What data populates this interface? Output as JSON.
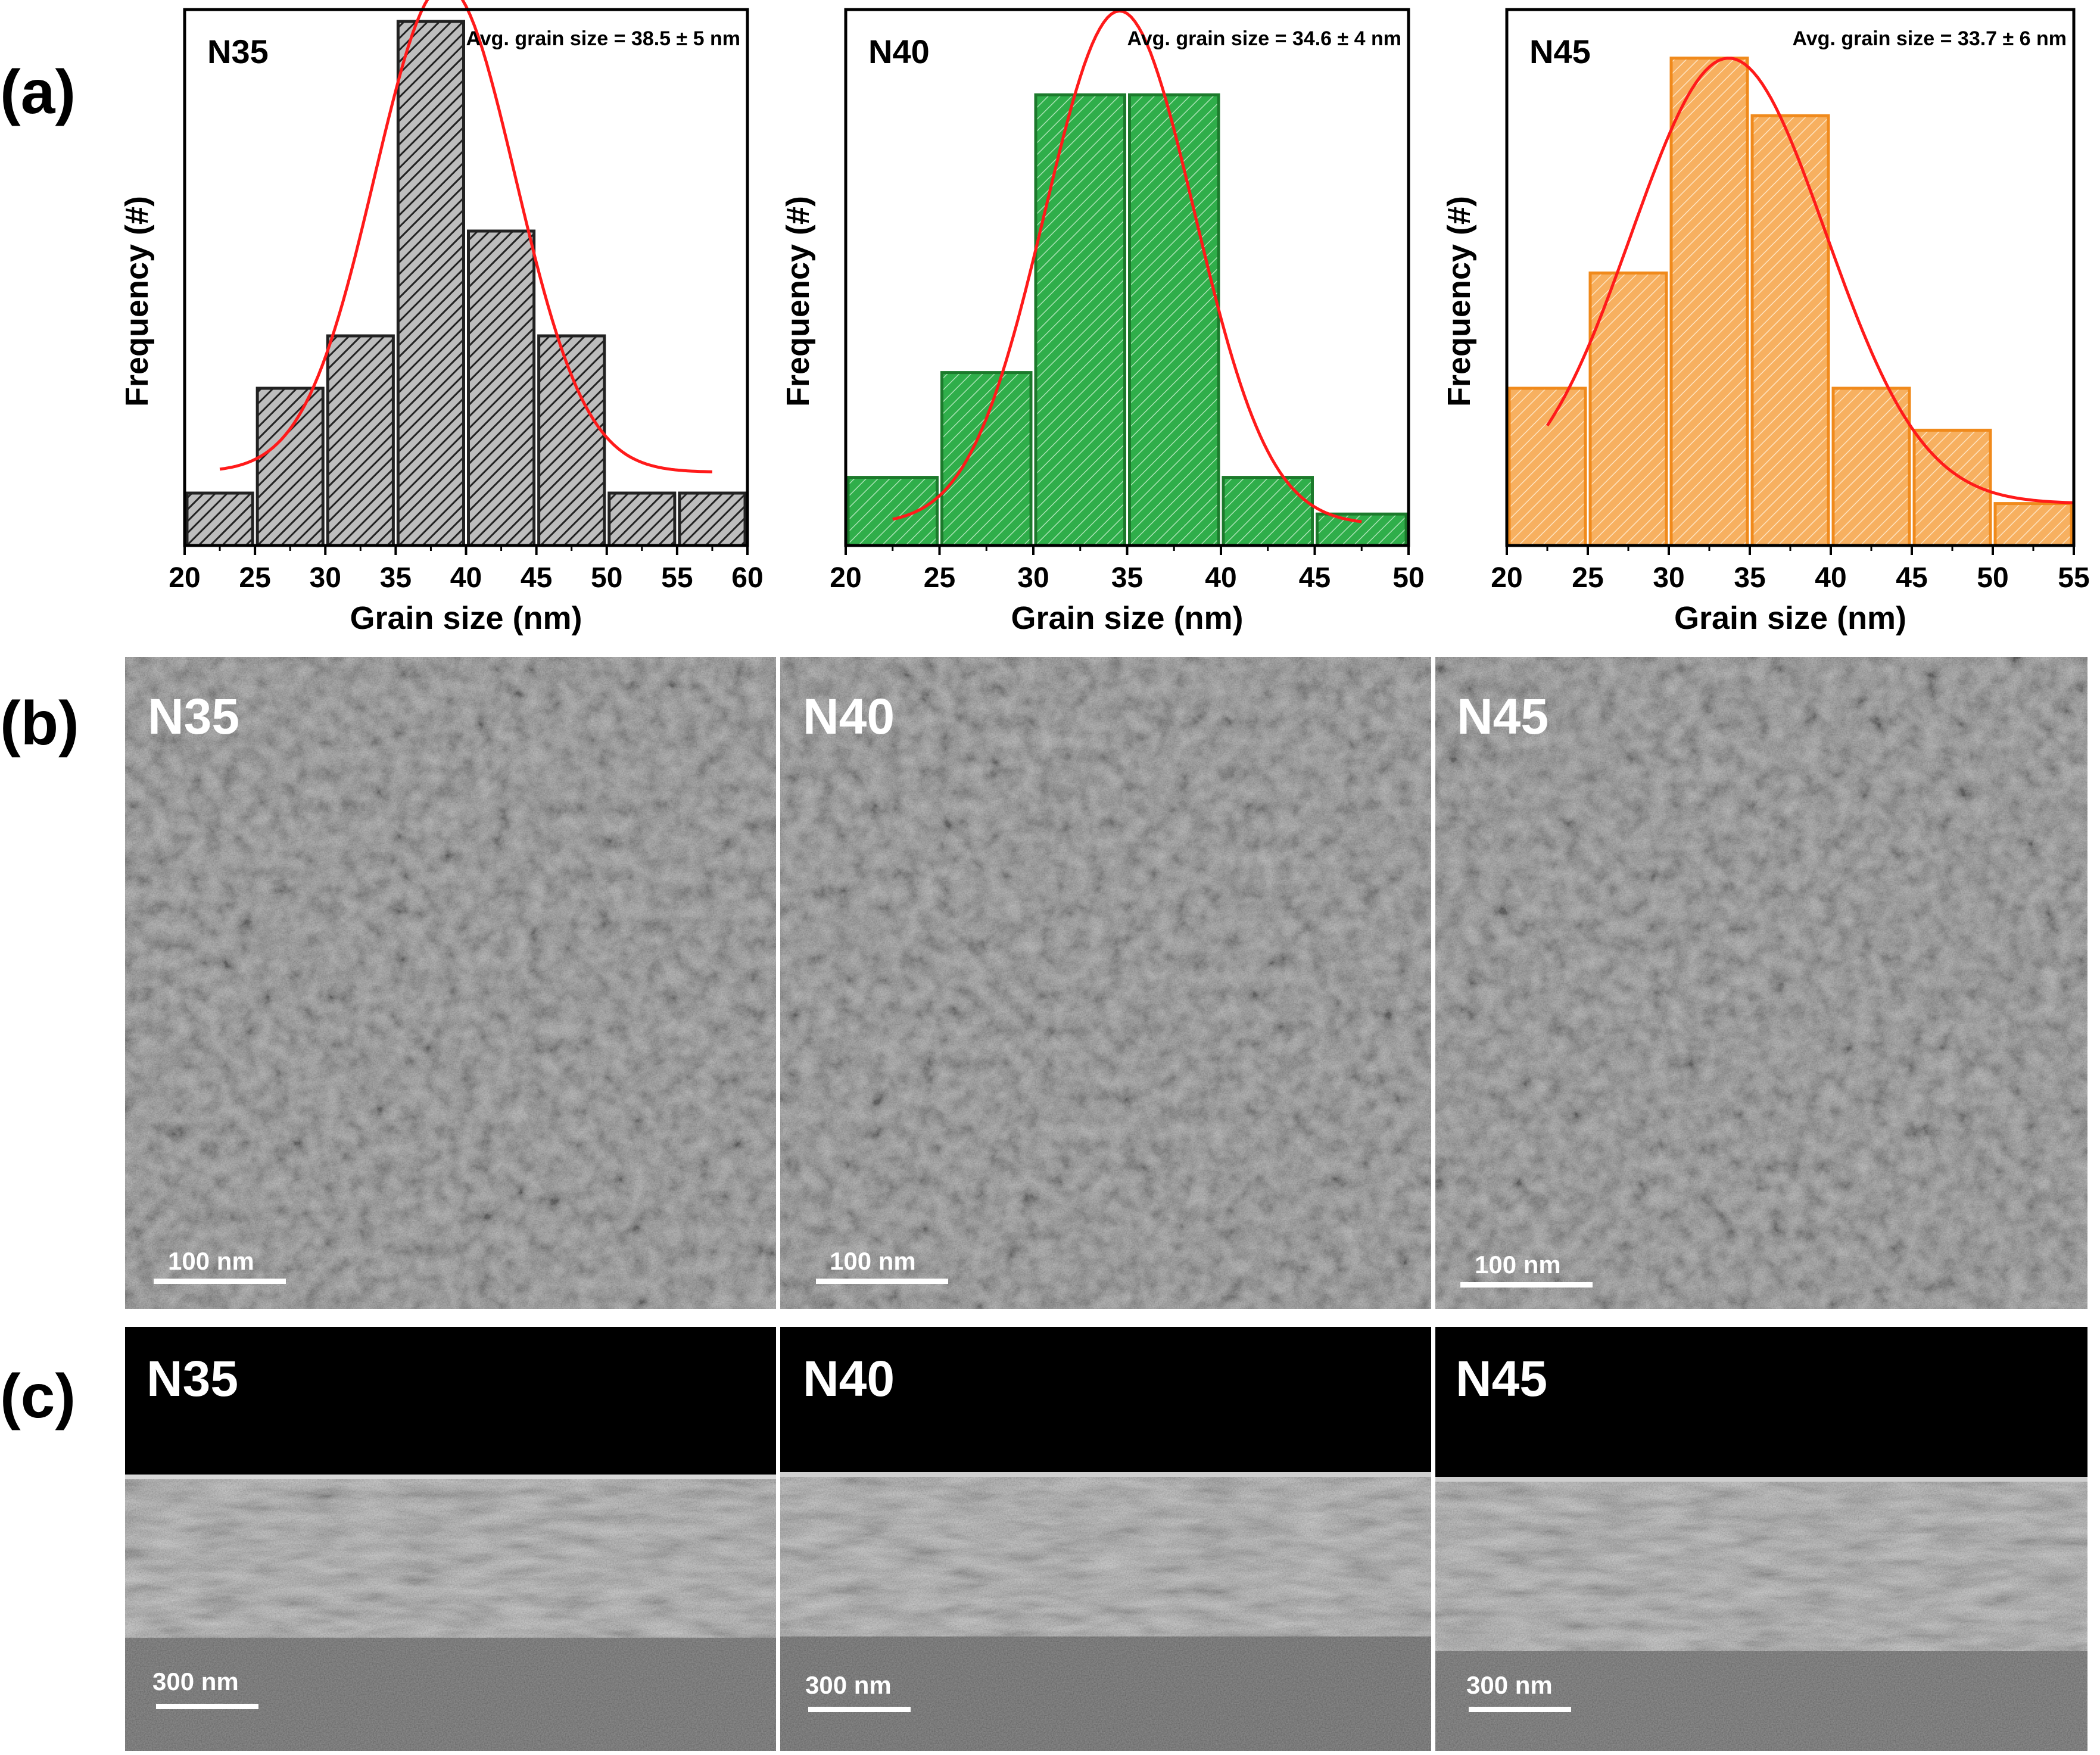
{
  "panel_labels": {
    "a": "(a)",
    "b": "(b)",
    "c": "(c)"
  },
  "colors": {
    "fit_line": "#ff1a1a",
    "N35_fill": "#bdbdbd",
    "N35_stroke": "#222222",
    "N40_fill": "#2fae4a",
    "N40_stroke": "#1c7a2c",
    "N45_fill": "#f7b060",
    "N45_stroke": "#f08a1c"
  },
  "chart_data": [
    {
      "type": "bar",
      "sample": "N35",
      "annotation": "Avg. grain size = 38.5 ± 5 nm",
      "xlabel": "Grain size (nm)",
      "ylabel": "Frequency (#)",
      "xlim": [
        20,
        60
      ],
      "ylim": [
        0,
        10
      ],
      "xticks": [
        20,
        25,
        30,
        35,
        40,
        45,
        50,
        55,
        60
      ],
      "bin_width": 5,
      "bin_starts": [
        20,
        25,
        30,
        35,
        40,
        45,
        50,
        55
      ],
      "values": [
        1,
        3,
        4,
        10,
        6,
        4,
        1,
        1
      ],
      "fit": {
        "type": "gaussian",
        "mean": 38.5,
        "sigma": 5,
        "amplitude": 9.3,
        "offset": 1.4,
        "x_range": [
          22.5,
          57.5
        ]
      }
    },
    {
      "type": "bar",
      "sample": "N40",
      "annotation": "Avg. grain size = 34.6 ± 4 nm",
      "xlabel": "Grain size (nm)",
      "ylabel": "Frequency (#)",
      "xlim": [
        20,
        50
      ],
      "ylim": [
        0,
        10
      ],
      "xticks": [
        20,
        25,
        30,
        35,
        40,
        45,
        50
      ],
      "bin_width": 5,
      "bin_starts": [
        20,
        25,
        30,
        35,
        40,
        45
      ],
      "values": [
        1.3,
        3.3,
        8.6,
        8.6,
        1.3,
        0.6
      ],
      "fit": {
        "type": "gaussian",
        "mean": 34.6,
        "sigma": 4,
        "amplitude": 9.8,
        "offset": 0.4,
        "x_range": [
          22.5,
          47.5
        ]
      }
    },
    {
      "type": "bar",
      "sample": "N45",
      "annotation": "Avg. grain size = 33.7 ± 6 nm",
      "xlabel": "Grain size (nm)",
      "ylabel": "Frequency (#)",
      "xlim": [
        20,
        55
      ],
      "ylim": [
        0,
        10
      ],
      "xticks": [
        20,
        25,
        30,
        35,
        40,
        45,
        50,
        55
      ],
      "bin_width": 5,
      "bin_starts": [
        20,
        25,
        30,
        35,
        40,
        45,
        50
      ],
      "values": [
        3,
        5.2,
        9.3,
        8.2,
        3,
        2.2,
        0.8
      ],
      "fit": {
        "type": "gaussian",
        "mean": 33.7,
        "sigma": 6,
        "amplitude": 8.5,
        "offset": 0.8,
        "x_range": [
          22.5,
          55
        ]
      }
    }
  ],
  "sem_top": [
    {
      "label": "N35",
      "scale_bar": "100 nm"
    },
    {
      "label": "N40",
      "scale_bar": "100 nm"
    },
    {
      "label": "N45",
      "scale_bar": "100 nm"
    }
  ],
  "sem_cross": [
    {
      "label": "N35",
      "scale_bar": "300 nm"
    },
    {
      "label": "N40",
      "scale_bar": "300 nm"
    },
    {
      "label": "N45",
      "scale_bar": "300 nm"
    }
  ]
}
